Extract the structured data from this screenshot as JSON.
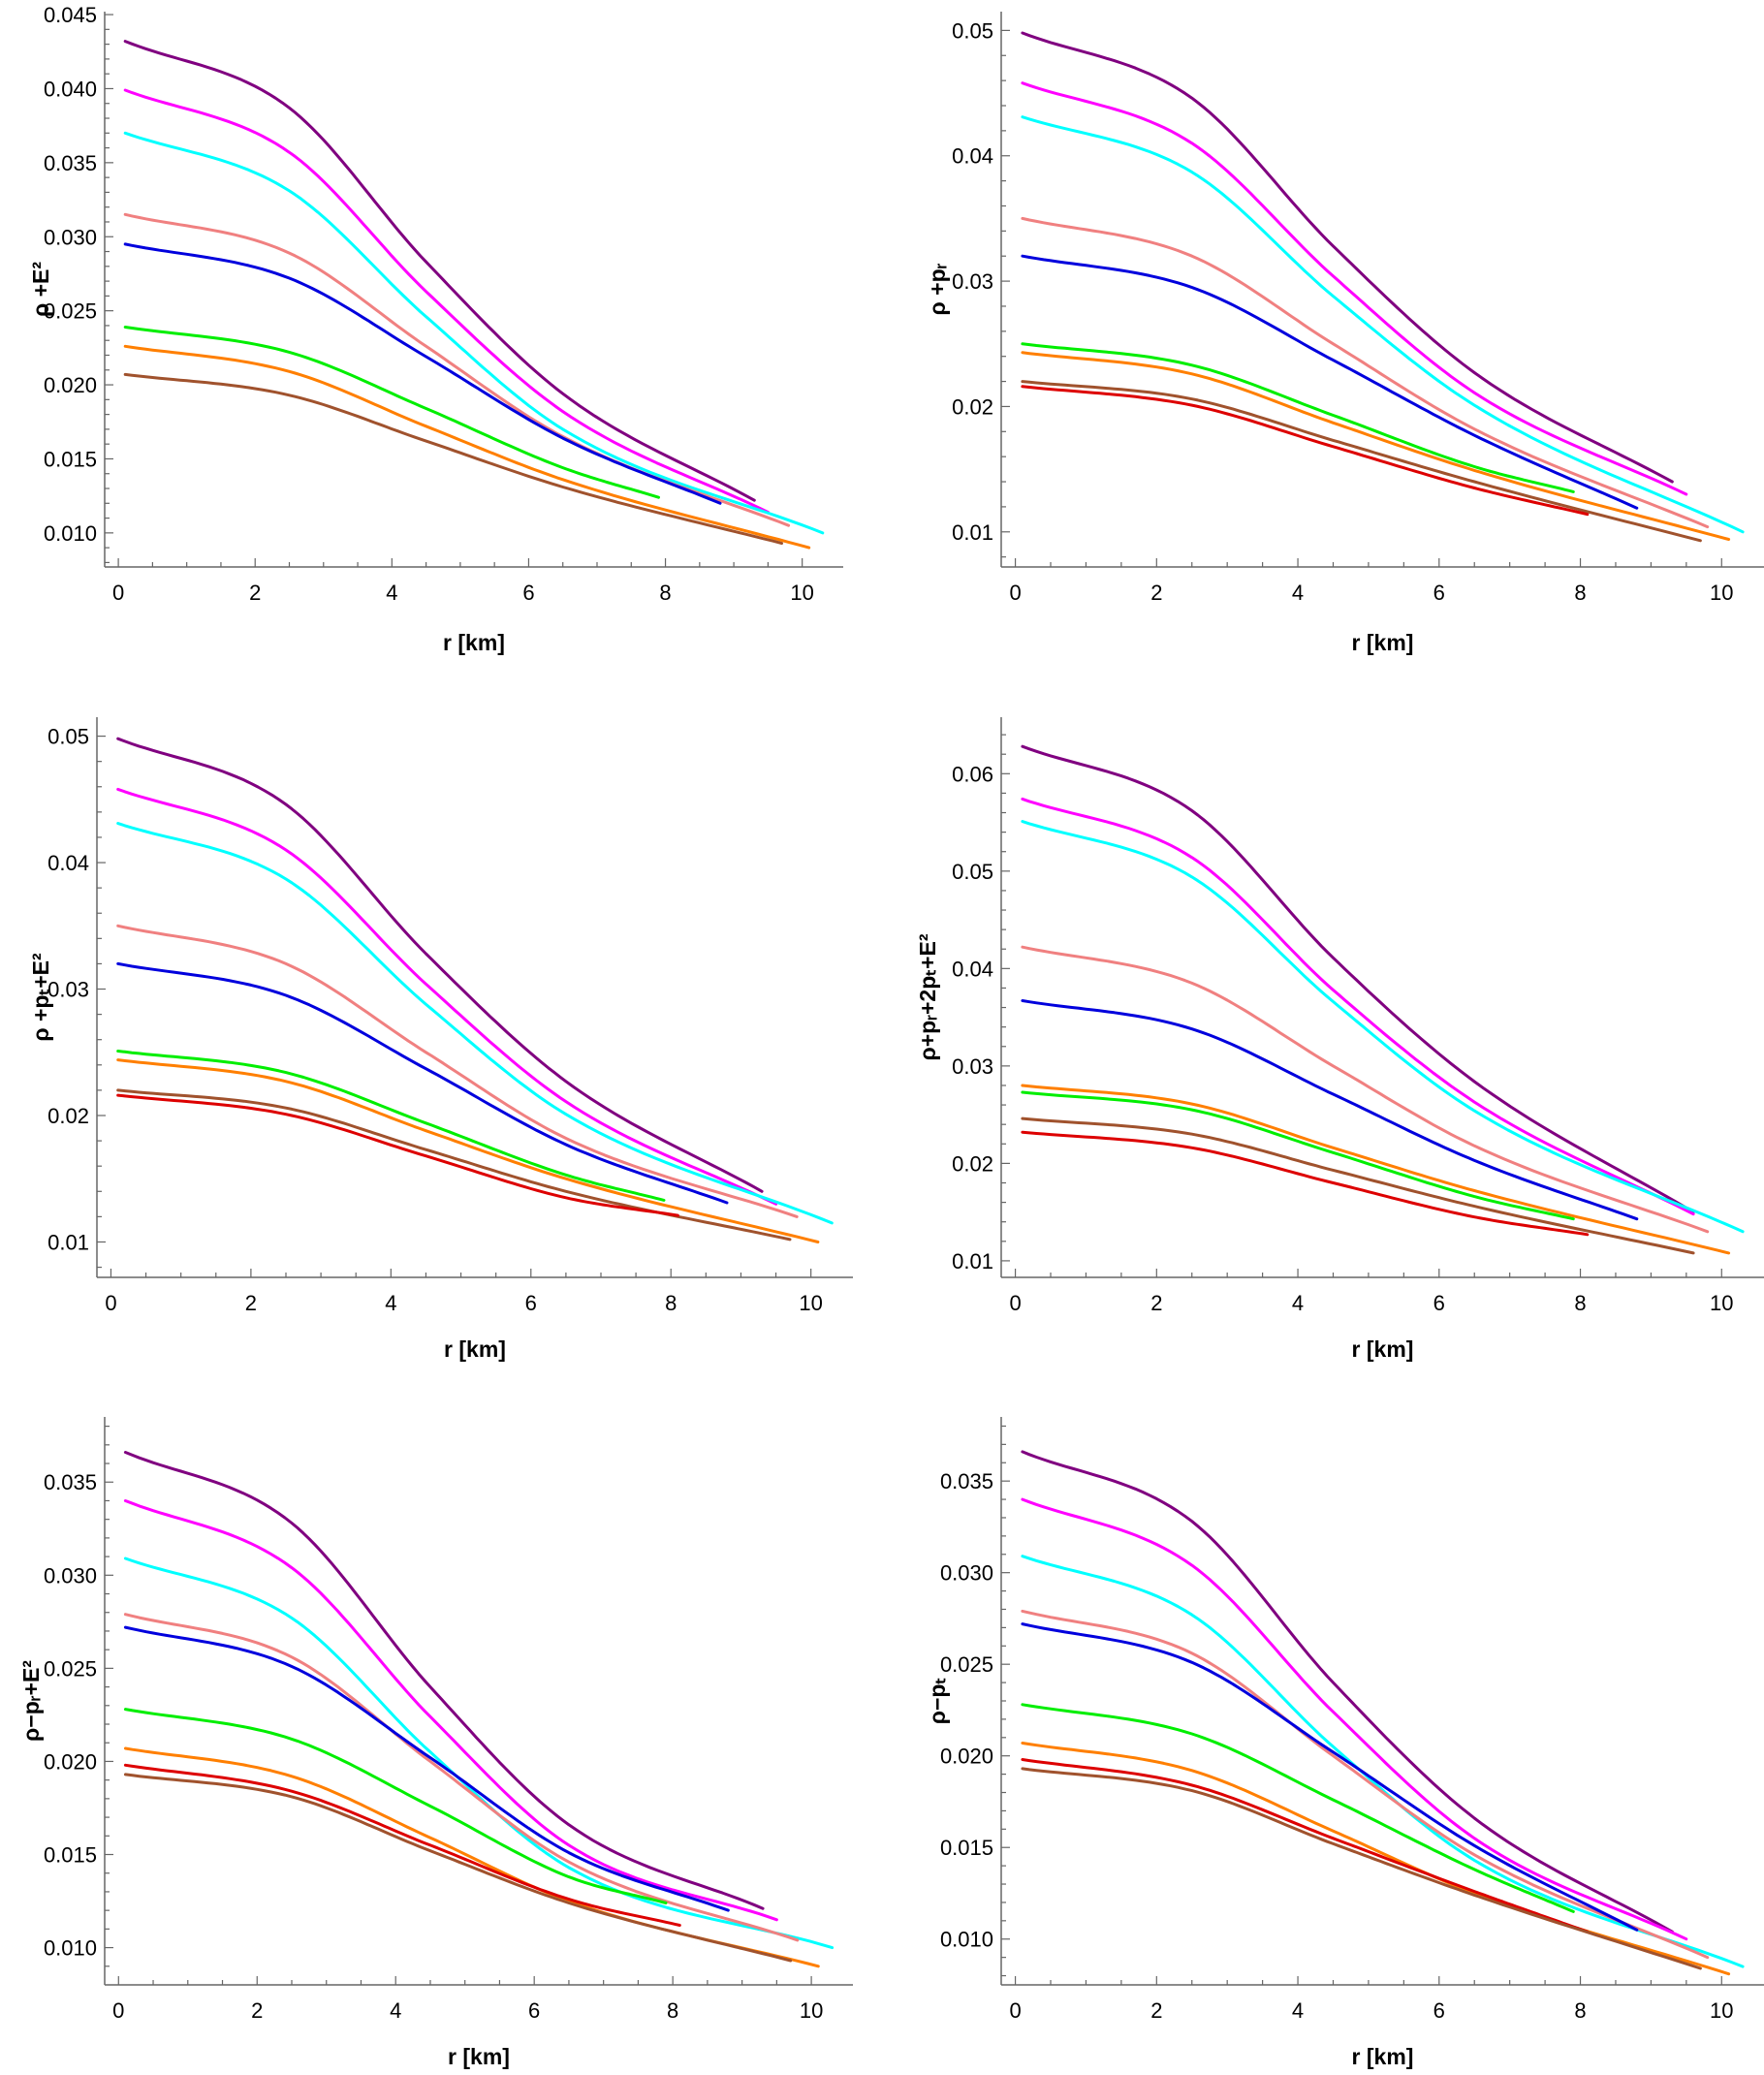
{
  "colors": {
    "purple": "#800080",
    "magenta": "#ff00ff",
    "cyan": "#00ffff",
    "salmon": "#f08080",
    "blue": "#0000dd",
    "green": "#00ee00",
    "orange": "#ff7f00",
    "brown": "#a0522d",
    "red": "#dd0000"
  },
  "chart_data": [
    {
      "type": "line",
      "ylabel": "ρ +E²",
      "xlabel": "r [km]",
      "xlim": [
        -0.2,
        10.6
      ],
      "ylim": [
        0.0077,
        0.0452
      ],
      "xticks": [
        "0",
        "2",
        "4",
        "6",
        "8",
        "10"
      ],
      "yticks": [
        "0.010",
        "0.015",
        "0.020",
        "0.025",
        "0.030",
        "0.035",
        "0.040",
        "0.045"
      ],
      "grid": false,
      "series": [
        {
          "color": "purple",
          "x": [
            0.1,
            2.5,
            4.5,
            6.5,
            9.3
          ],
          "y": [
            0.0432,
            0.0387,
            0.0283,
            0.0194,
            0.0122
          ]
        },
        {
          "color": "magenta",
          "x": [
            0.1,
            2.5,
            4.5,
            6.5,
            9.5
          ],
          "y": [
            0.0399,
            0.0357,
            0.0263,
            0.0182,
            0.0114
          ]
        },
        {
          "color": "cyan",
          "x": [
            0.1,
            2.5,
            4.5,
            6.5,
            10.3
          ],
          "y": [
            0.037,
            0.0331,
            0.0246,
            0.017,
            0.01
          ]
        },
        {
          "color": "salmon",
          "x": [
            0.1,
            2.5,
            4.5,
            6.5,
            9.8
          ],
          "y": [
            0.0315,
            0.0289,
            0.0226,
            0.0165,
            0.0105
          ]
        },
        {
          "color": "blue",
          "x": [
            0.1,
            2.5,
            4.5,
            6.5,
            8.8
          ],
          "y": [
            0.0295,
            0.0272,
            0.0219,
            0.0164,
            0.012
          ]
        },
        {
          "color": "green",
          "x": [
            0.1,
            2.5,
            4.5,
            6.5,
            7.9
          ],
          "y": [
            0.0239,
            0.0222,
            0.0184,
            0.0144,
            0.0124
          ]
        },
        {
          "color": "orange",
          "x": [
            0.1,
            2.5,
            4.5,
            6.5,
            10.1
          ],
          "y": [
            0.0226,
            0.0209,
            0.0172,
            0.0136,
            0.009
          ]
        },
        {
          "color": "brown",
          "x": [
            0.1,
            2.5,
            4.5,
            6.5,
            9.7
          ],
          "y": [
            0.0207,
            0.0193,
            0.0162,
            0.0131,
            0.0093
          ]
        }
      ]
    },
    {
      "type": "line",
      "ylabel": "ρ +pᵣ",
      "xlabel": "r [km]",
      "xlim": [
        -0.2,
        10.6
      ],
      "ylim": [
        0.0072,
        0.0515
      ],
      "xticks": [
        "0",
        "2",
        "4",
        "6",
        "8",
        "10"
      ],
      "yticks": [
        "0.01",
        "0.02",
        "0.03",
        "0.04",
        "0.05"
      ],
      "grid": false,
      "series": [
        {
          "color": "purple",
          "x": [
            0.1,
            2.5,
            4.5,
            6.5,
            9.3
          ],
          "y": [
            0.0498,
            0.0446,
            0.0328,
            0.0227,
            0.014
          ]
        },
        {
          "color": "magenta",
          "x": [
            0.1,
            2.5,
            4.5,
            6.5,
            9.5
          ],
          "y": [
            0.0458,
            0.041,
            0.0304,
            0.0211,
            0.013
          ]
        },
        {
          "color": "cyan",
          "x": [
            0.1,
            2.5,
            4.5,
            6.5,
            10.3
          ],
          "y": [
            0.0431,
            0.0387,
            0.0288,
            0.0201,
            0.01
          ]
        },
        {
          "color": "salmon",
          "x": [
            0.1,
            2.5,
            4.5,
            6.5,
            9.8
          ],
          "y": [
            0.035,
            0.032,
            0.025,
            0.0182,
            0.0104
          ]
        },
        {
          "color": "blue",
          "x": [
            0.1,
            2.5,
            4.5,
            6.5,
            8.8
          ],
          "y": [
            0.032,
            0.0295,
            0.0237,
            0.0177,
            0.0119
          ]
        },
        {
          "color": "green",
          "x": [
            0.1,
            2.5,
            4.5,
            6.5,
            7.9
          ],
          "y": [
            0.025,
            0.0233,
            0.0193,
            0.0152,
            0.0132
          ]
        },
        {
          "color": "orange",
          "x": [
            0.1,
            2.5,
            4.5,
            6.5,
            10.1
          ],
          "y": [
            0.0243,
            0.0226,
            0.0187,
            0.0149,
            0.0094
          ]
        },
        {
          "color": "brown",
          "x": [
            0.1,
            2.5,
            4.5,
            6.5,
            9.7
          ],
          "y": [
            0.022,
            0.0206,
            0.0173,
            0.014,
            0.0093
          ]
        },
        {
          "color": "red",
          "x": [
            0.1,
            2.5,
            4.5,
            6.5,
            8.1
          ],
          "y": [
            0.0216,
            0.0201,
            0.0168,
            0.0135,
            0.0114
          ]
        }
      ]
    },
    {
      "type": "line",
      "ylabel": "ρ +pₜ+E²",
      "xlabel": "r [km]",
      "xlim": [
        -0.2,
        10.6
      ],
      "ylim": [
        0.0072,
        0.0515
      ],
      "xticks": [
        "0",
        "2",
        "4",
        "6",
        "8",
        "10"
      ],
      "yticks": [
        "0.01",
        "0.02",
        "0.03",
        "0.04",
        "0.05"
      ],
      "grid": false,
      "series": [
        {
          "color": "purple",
          "x": [
            0.1,
            2.5,
            4.5,
            6.5,
            9.3
          ],
          "y": [
            0.0498,
            0.0446,
            0.0328,
            0.0227,
            0.014
          ]
        },
        {
          "color": "magenta",
          "x": [
            0.1,
            2.5,
            4.5,
            6.5,
            9.5
          ],
          "y": [
            0.0458,
            0.041,
            0.0304,
            0.0211,
            0.013
          ]
        },
        {
          "color": "cyan",
          "x": [
            0.1,
            2.5,
            4.5,
            6.5,
            10.3
          ],
          "y": [
            0.0431,
            0.0387,
            0.0288,
            0.0201,
            0.0115
          ]
        },
        {
          "color": "salmon",
          "x": [
            0.1,
            2.5,
            4.5,
            6.5,
            9.8
          ],
          "y": [
            0.035,
            0.032,
            0.025,
            0.0182,
            0.012
          ]
        },
        {
          "color": "blue",
          "x": [
            0.1,
            2.5,
            4.5,
            6.5,
            8.8
          ],
          "y": [
            0.032,
            0.0295,
            0.0237,
            0.0177,
            0.0131
          ]
        },
        {
          "color": "green",
          "x": [
            0.1,
            2.5,
            4.5,
            6.5,
            7.9
          ],
          "y": [
            0.0251,
            0.0234,
            0.0194,
            0.0153,
            0.0133
          ]
        },
        {
          "color": "orange",
          "x": [
            0.1,
            2.5,
            4.5,
            6.5,
            10.1
          ],
          "y": [
            0.0244,
            0.0227,
            0.0188,
            0.015,
            0.01
          ]
        },
        {
          "color": "brown",
          "x": [
            0.1,
            2.5,
            4.5,
            6.5,
            9.7
          ],
          "y": [
            0.022,
            0.0206,
            0.0173,
            0.014,
            0.0102
          ]
        },
        {
          "color": "red",
          "x": [
            0.1,
            2.5,
            4.5,
            6.5,
            8.1
          ],
          "y": [
            0.0216,
            0.0201,
            0.0168,
            0.0135,
            0.0121
          ]
        }
      ]
    },
    {
      "type": "line",
      "ylabel": "ρ+pᵣ+2pₜ+E²",
      "xlabel": "r [km]",
      "xlim": [
        -0.2,
        10.6
      ],
      "ylim": [
        0.0083,
        0.0658
      ],
      "xticks": [
        "0",
        "2",
        "4",
        "6",
        "8",
        "10"
      ],
      "yticks": [
        "0.01",
        "0.02",
        "0.03",
        "0.04",
        "0.05",
        "0.06"
      ],
      "grid": false,
      "series": [
        {
          "color": "purple",
          "x": [
            0.1,
            2.5,
            4.5,
            6.5,
            9.6
          ],
          "y": [
            0.0628,
            0.0562,
            0.0411,
            0.0284,
            0.015
          ]
        },
        {
          "color": "magenta",
          "x": [
            0.1,
            2.5,
            4.5,
            6.5,
            9.6
          ],
          "y": [
            0.0574,
            0.0514,
            0.0378,
            0.0263,
            0.0148
          ]
        },
        {
          "color": "cyan",
          "x": [
            0.1,
            2.5,
            4.5,
            6.5,
            10.3
          ],
          "y": [
            0.0551,
            0.0494,
            0.0366,
            0.0254,
            0.013
          ]
        },
        {
          "color": "salmon",
          "x": [
            0.1,
            2.5,
            4.5,
            6.5,
            9.8
          ],
          "y": [
            0.0422,
            0.0385,
            0.03,
            0.0218,
            0.013
          ]
        },
        {
          "color": "blue",
          "x": [
            0.1,
            2.5,
            4.5,
            6.5,
            8.8
          ],
          "y": [
            0.0367,
            0.0338,
            0.0271,
            0.0203,
            0.0143
          ]
        },
        {
          "color": "orange",
          "x": [
            0.1,
            2.5,
            4.5,
            6.5,
            10.1
          ],
          "y": [
            0.028,
            0.0261,
            0.0216,
            0.0172,
            0.0108
          ]
        },
        {
          "color": "green",
          "x": [
            0.1,
            2.5,
            4.5,
            6.5,
            7.9
          ],
          "y": [
            0.0273,
            0.0255,
            0.0211,
            0.0166,
            0.0143
          ]
        },
        {
          "color": "brown",
          "x": [
            0.1,
            2.5,
            4.5,
            6.5,
            9.6
          ],
          "y": [
            0.0246,
            0.023,
            0.0193,
            0.0156,
            0.0108
          ]
        },
        {
          "color": "red",
          "x": [
            0.1,
            2.5,
            4.5,
            6.5,
            8.1
          ],
          "y": [
            0.0232,
            0.0216,
            0.018,
            0.0145,
            0.0127
          ]
        }
      ]
    },
    {
      "type": "line",
      "ylabel": "ρ−pᵣ+E²",
      "xlabel": "r [km]",
      "xlim": [
        -0.2,
        10.6
      ],
      "ylim": [
        0.008,
        0.0385
      ],
      "xticks": [
        "0",
        "2",
        "4",
        "6",
        "8",
        "10"
      ],
      "yticks": [
        "0.010",
        "0.015",
        "0.020",
        "0.025",
        "0.030",
        "0.035"
      ],
      "grid": false,
      "series": [
        {
          "color": "purple",
          "x": [
            0.1,
            2.5,
            4.5,
            6.5,
            9.3
          ],
          "y": [
            0.0366,
            0.0328,
            0.024,
            0.0166,
            0.0121
          ]
        },
        {
          "color": "magenta",
          "x": [
            0.1,
            2.5,
            4.5,
            6.5,
            9.5
          ],
          "y": [
            0.034,
            0.0304,
            0.0224,
            0.0155,
            0.0115
          ]
        },
        {
          "color": "cyan",
          "x": [
            0.1,
            2.5,
            4.5,
            6.5,
            10.3
          ],
          "y": [
            0.0309,
            0.0277,
            0.0205,
            0.0143,
            0.01
          ]
        },
        {
          "color": "salmon",
          "x": [
            0.1,
            2.5,
            4.5,
            6.5,
            9.8
          ],
          "y": [
            0.0279,
            0.0256,
            0.02,
            0.0146,
            0.0104
          ]
        },
        {
          "color": "blue",
          "x": [
            0.1,
            2.5,
            4.5,
            6.5,
            8.8
          ],
          "y": [
            0.0272,
            0.0251,
            0.0202,
            0.0151,
            0.012
          ]
        },
        {
          "color": "green",
          "x": [
            0.1,
            2.5,
            4.5,
            6.5,
            7.9
          ],
          "y": [
            0.0228,
            0.0212,
            0.0176,
            0.0138,
            0.0124
          ]
        },
        {
          "color": "orange",
          "x": [
            0.1,
            2.5,
            4.5,
            6.5,
            10.1
          ],
          "y": [
            0.0207,
            0.0192,
            0.0159,
            0.0125,
            0.009
          ]
        },
        {
          "color": "red",
          "x": [
            0.1,
            2.5,
            4.5,
            6.5,
            8.1
          ],
          "y": [
            0.0198,
            0.0184,
            0.0155,
            0.0126,
            0.0112
          ]
        },
        {
          "color": "brown",
          "x": [
            0.1,
            2.5,
            4.5,
            6.5,
            9.7
          ],
          "y": [
            0.0193,
            0.0181,
            0.0152,
            0.0124,
            0.0093
          ]
        }
      ]
    },
    {
      "type": "line",
      "ylabel": "ρ−pₜ",
      "xlabel": "r [km]",
      "xlim": [
        -0.2,
        10.6
      ],
      "ylim": [
        0.0075,
        0.0385
      ],
      "xticks": [
        "0",
        "2",
        "4",
        "6",
        "8",
        "10"
      ],
      "yticks": [
        "0.010",
        "0.015",
        "0.020",
        "0.025",
        "0.030",
        "0.035"
      ],
      "grid": false,
      "series": [
        {
          "color": "purple",
          "x": [
            0.1,
            2.5,
            4.5,
            6.5,
            9.3
          ],
          "y": [
            0.0366,
            0.0328,
            0.024,
            0.0166,
            0.0104
          ]
        },
        {
          "color": "magenta",
          "x": [
            0.1,
            2.5,
            4.5,
            6.5,
            9.5
          ],
          "y": [
            0.034,
            0.0304,
            0.0224,
            0.0155,
            0.01
          ]
        },
        {
          "color": "cyan",
          "x": [
            0.1,
            2.5,
            4.5,
            6.5,
            10.3
          ],
          "y": [
            0.0309,
            0.0277,
            0.0205,
            0.0143,
            0.0085
          ]
        },
        {
          "color": "salmon",
          "x": [
            0.1,
            2.5,
            4.5,
            6.5,
            9.8
          ],
          "y": [
            0.0279,
            0.0256,
            0.02,
            0.0146,
            0.009
          ]
        },
        {
          "color": "blue",
          "x": [
            0.1,
            2.5,
            4.5,
            6.5,
            8.8
          ],
          "y": [
            0.0272,
            0.0251,
            0.0202,
            0.0151,
            0.0105
          ]
        },
        {
          "color": "green",
          "x": [
            0.1,
            2.5,
            4.5,
            6.5,
            7.9
          ],
          "y": [
            0.0228,
            0.0212,
            0.0176,
            0.0138,
            0.0115
          ]
        },
        {
          "color": "orange",
          "x": [
            0.1,
            2.5,
            4.5,
            6.5,
            10.1
          ],
          "y": [
            0.0207,
            0.0192,
            0.0159,
            0.0125,
            0.0081
          ]
        },
        {
          "color": "red",
          "x": [
            0.1,
            2.5,
            4.5,
            6.5,
            8.1
          ],
          "y": [
            0.0198,
            0.0184,
            0.0155,
            0.0126,
            0.0104
          ]
        },
        {
          "color": "brown",
          "x": [
            0.1,
            2.5,
            4.5,
            6.5,
            9.7
          ],
          "y": [
            0.0193,
            0.0181,
            0.0152,
            0.0124,
            0.0084
          ]
        }
      ]
    }
  ]
}
